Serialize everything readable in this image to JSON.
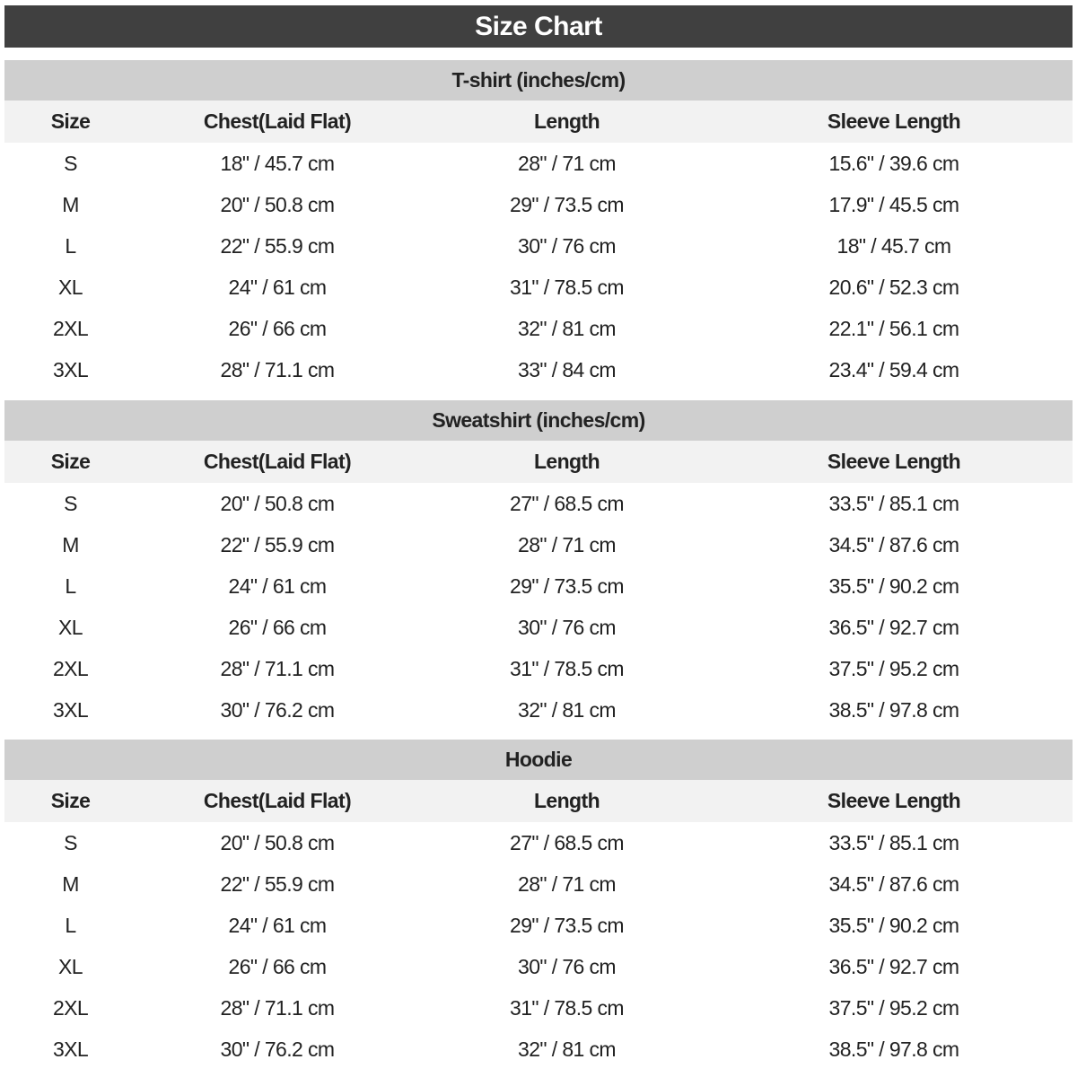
{
  "title": "Size Chart",
  "columns": [
    "Size",
    "Chest(Laid Flat)",
    "Length",
    "Sleeve Length"
  ],
  "sections": [
    {
      "name": "T-shirt (inches/cm)",
      "rows": [
        [
          "S",
          "18\" / 45.7 cm",
          "28\" / 71 cm",
          "15.6\" / 39.6 cm"
        ],
        [
          "M",
          "20\" / 50.8 cm",
          "29\" / 73.5 cm",
          "17.9\" / 45.5 cm"
        ],
        [
          "L",
          "22\" / 55.9 cm",
          "30\" / 76 cm",
          "18\" / 45.7 cm"
        ],
        [
          "XL",
          "24\" / 61 cm",
          "31\" / 78.5 cm",
          "20.6\" / 52.3 cm"
        ],
        [
          "2XL",
          "26\" / 66 cm",
          "32\" / 81 cm",
          "22.1\" / 56.1 cm"
        ],
        [
          "3XL",
          "28\" / 71.1 cm",
          "33\" / 84 cm",
          "23.4\" / 59.4 cm"
        ]
      ]
    },
    {
      "name": "Sweatshirt (inches/cm)",
      "rows": [
        [
          "S",
          "20\" / 50.8 cm",
          "27\" / 68.5 cm",
          "33.5\" / 85.1 cm"
        ],
        [
          "M",
          "22\" / 55.9 cm",
          "28\" / 71 cm",
          "34.5\" / 87.6 cm"
        ],
        [
          "L",
          "24\" / 61 cm",
          "29\" / 73.5 cm",
          "35.5\" / 90.2 cm"
        ],
        [
          "XL",
          "26\" / 66 cm",
          "30\" / 76 cm",
          "36.5\" / 92.7 cm"
        ],
        [
          "2XL",
          "28\" / 71.1 cm",
          "31\" / 78.5 cm",
          "37.5\" / 95.2 cm"
        ],
        [
          "3XL",
          "30\" / 76.2 cm",
          "32\" / 81 cm",
          "38.5\" / 97.8 cm"
        ]
      ]
    },
    {
      "name": "Hoodie",
      "rows": [
        [
          "S",
          "20\" / 50.8 cm",
          "27\" / 68.5 cm",
          "33.5\" / 85.1 cm"
        ],
        [
          "M",
          "22\" / 55.9 cm",
          "28\" / 71 cm",
          "34.5\" / 87.6 cm"
        ],
        [
          "L",
          "24\" / 61 cm",
          "29\" / 73.5 cm",
          "35.5\" / 90.2 cm"
        ],
        [
          "XL",
          "26\" / 66 cm",
          "30\" / 76 cm",
          "36.5\" / 92.7 cm"
        ],
        [
          "2XL",
          "28\" / 71.1 cm",
          "31\" / 78.5 cm",
          "37.5\" / 95.2 cm"
        ],
        [
          "3XL",
          "30\" / 76.2 cm",
          "32\" / 81 cm",
          "38.5\" / 97.8 cm"
        ]
      ]
    }
  ],
  "colors": {
    "title_bg": "#404040",
    "section_bg": "#cfcfcf",
    "header_bg": "#f2f2f2"
  }
}
